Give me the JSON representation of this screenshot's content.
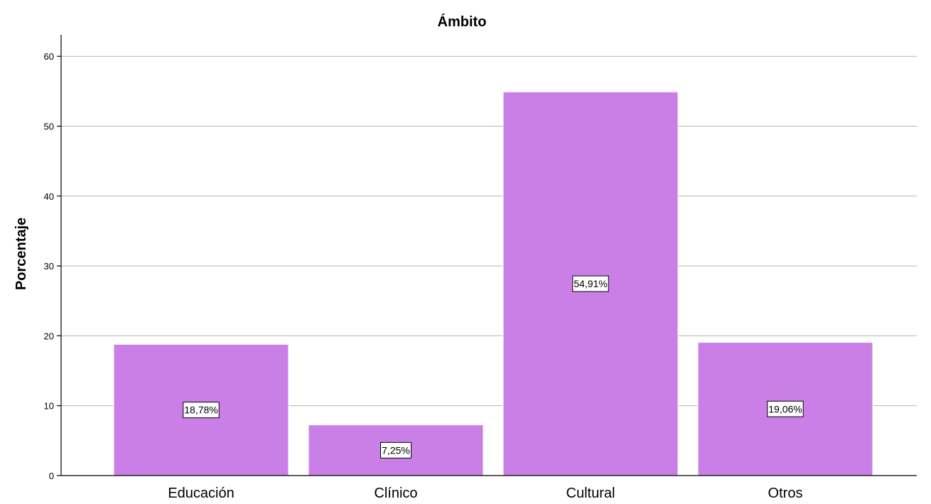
{
  "chart_data": {
    "type": "bar",
    "title": "Ámbito",
    "xlabel": "",
    "ylabel": "Porcentaje",
    "categories": [
      "Educación",
      "Clínico",
      "Cultural",
      "Otros"
    ],
    "values": [
      18.78,
      7.25,
      54.91,
      19.06
    ],
    "data_labels": [
      "18,78%",
      "7,25%",
      "54,91%",
      "19,06%"
    ],
    "yticks": [
      0,
      10,
      20,
      30,
      40,
      50,
      60
    ],
    "ylim": [
      0,
      63
    ],
    "grid": true,
    "bar_color": "#c97fe6"
  }
}
